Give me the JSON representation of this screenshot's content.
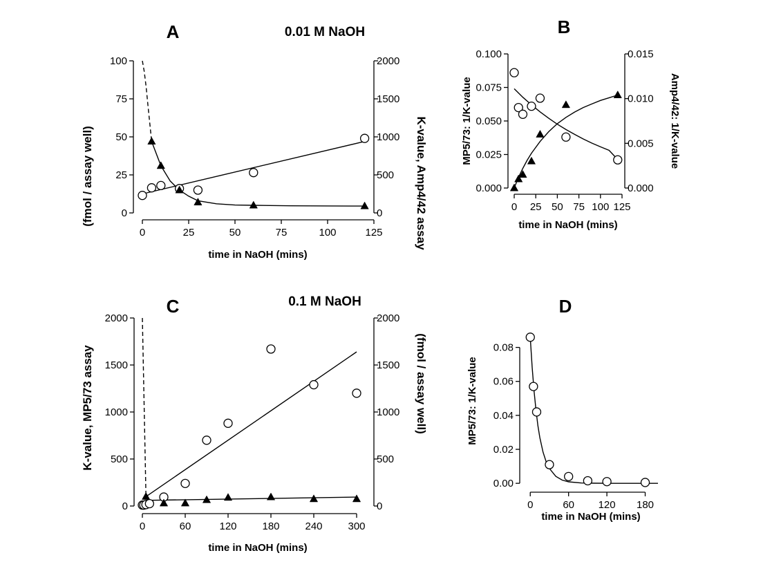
{
  "figure": {
    "shared_left_ylabel": "K-value, MP5/73 assay",
    "shared_left_ylabel_unit": "(fmol / assay well)",
    "shared_right_ylabel": "K-value, Amp4/42 assay",
    "shared_right_ylabel_unit": "(fmol / assay well)"
  },
  "chart_data": [
    {
      "id": "A",
      "type": "scatter",
      "panel_label": "A",
      "condition": "0.01 M NaOH",
      "xlabel": "time in NaOH (mins)",
      "xlim": [
        0,
        125
      ],
      "xticks": [
        0,
        25,
        50,
        75,
        100,
        125
      ],
      "ylim_left": [
        0,
        100
      ],
      "yticks_left": [
        0,
        25,
        50,
        75,
        100
      ],
      "ylim_right": [
        0,
        2000
      ],
      "yticks_right": [
        0,
        500,
        1000,
        1500,
        2000
      ],
      "series": [
        {
          "marker": "circle",
          "axis": "right",
          "x": [
            0,
            5,
            10,
            20,
            30,
            60,
            120
          ],
          "y": [
            230,
            330,
            360,
            320,
            300,
            530,
            980
          ]
        },
        {
          "marker": "triangle",
          "axis": "left",
          "x": [
            5,
            10,
            20,
            30,
            60,
            120
          ],
          "y": [
            47,
            31,
            15,
            7,
            5,
            4.5
          ]
        }
      ],
      "fits": [
        {
          "style": "solid",
          "axis": "right",
          "x": [
            0,
            120
          ],
          "y": [
            250,
            940
          ]
        },
        {
          "style": "solid",
          "axis": "left",
          "x": [
            5,
            10,
            15,
            20,
            25,
            30,
            40,
            50,
            60,
            80,
            100,
            120
          ],
          "y": [
            47,
            31,
            21,
            15,
            11,
            8,
            6,
            5.2,
            5,
            4.7,
            4.6,
            4.5
          ]
        },
        {
          "style": "dashed",
          "axis": "left",
          "x": [
            0,
            1,
            2,
            3,
            4,
            5
          ],
          "y": [
            100,
            93,
            83,
            71,
            59,
            47
          ]
        }
      ]
    },
    {
      "id": "B",
      "type": "scatter",
      "panel_label": "B",
      "xlabel": "time in NaOH (mins)",
      "ylabel_left": "MP5/73:  1/K-value",
      "ylabel_right": "Amp4/42:  1/K-value",
      "xlim": [
        0,
        125
      ],
      "xticks": [
        0,
        25,
        50,
        75,
        100,
        125
      ],
      "ylim_left": [
        0,
        0.1
      ],
      "yticks_left": [
        "0.000",
        "0.025",
        "0.050",
        "0.075",
        "0.100"
      ],
      "ylim_right": [
        0,
        0.015
      ],
      "yticks_right": [
        "0.000",
        "0.005",
        "0.010",
        "0.015"
      ],
      "series": [
        {
          "marker": "circle",
          "axis": "left",
          "x": [
            0,
            5,
            10,
            20,
            30,
            60,
            120
          ],
          "y": [
            0.086,
            0.06,
            0.055,
            0.061,
            0.067,
            0.038,
            0.021
          ]
        },
        {
          "marker": "triangle",
          "axis": "right",
          "x": [
            0,
            5,
            10,
            20,
            30,
            60,
            120
          ],
          "y": [
            0,
            0.001,
            0.0015,
            0.003,
            0.006,
            0.0093,
            0.0104
          ]
        }
      ],
      "fits": [
        {
          "style": "solid",
          "axis": "left",
          "x": [
            0,
            10,
            20,
            30,
            40,
            50,
            60,
            70,
            80,
            90,
            100,
            110,
            120
          ],
          "y": [
            0.074,
            0.0677,
            0.062,
            0.0568,
            0.052,
            0.0476,
            0.0436,
            0.04,
            0.0366,
            0.0335,
            0.0307,
            0.0281,
            0.0212
          ]
        },
        {
          "style": "solid",
          "axis": "right",
          "x": [
            0,
            5,
            10,
            15,
            20,
            30,
            40,
            50,
            60,
            70,
            80,
            90,
            100,
            110,
            120
          ],
          "y": [
            0,
            0.0012,
            0.0022,
            0.0031,
            0.0039,
            0.0052,
            0.0063,
            0.0072,
            0.0079,
            0.0085,
            0.009,
            0.0094,
            0.0098,
            0.0101,
            0.0104
          ]
        }
      ]
    },
    {
      "id": "C",
      "type": "scatter",
      "panel_label": "C",
      "condition": "0.1 M NaOH",
      "xlabel": "time in NaOH (mins)",
      "xlim": [
        0,
        300
      ],
      "xticks": [
        0,
        60,
        120,
        180,
        240,
        300
      ],
      "ylim_left": [
        0,
        2000
      ],
      "yticks_left": [
        0,
        500,
        1000,
        1500,
        2000
      ],
      "ylim_right": [
        0,
        2000
      ],
      "yticks_right": [
        0,
        500,
        1000,
        1500,
        2000
      ],
      "series": [
        {
          "marker": "circle",
          "axis": "left",
          "x": [
            0,
            2,
            5,
            10,
            30,
            60,
            90,
            120,
            180,
            240,
            300
          ],
          "y": [
            10,
            10,
            15,
            25,
            95,
            240,
            700,
            880,
            1670,
            1290,
            1200
          ]
        },
        {
          "marker": "triangle",
          "axis": "right",
          "x": [
            5,
            30,
            60,
            90,
            120,
            180,
            240,
            300
          ],
          "y": [
            100,
            30,
            30,
            65,
            90,
            95,
            75,
            75
          ]
        }
      ],
      "fits": [
        {
          "style": "solid",
          "axis": "left",
          "x": [
            5,
            300
          ],
          "y": [
            100,
            1640
          ]
        },
        {
          "style": "solid",
          "axis": "right",
          "x": [
            5,
            300
          ],
          "y": [
            60,
            95
          ]
        },
        {
          "style": "dashed",
          "axis": "left",
          "x": [
            0,
            5
          ],
          "y": [
            2000,
            100
          ]
        }
      ]
    },
    {
      "id": "D",
      "type": "scatter",
      "panel_label": "D",
      "xlabel": "time in NaOH (mins)",
      "ylabel_left": "MP5/73:  1/K-value",
      "xlim": [
        -10,
        200
      ],
      "xticks": [
        0,
        60,
        120,
        180
      ],
      "ylim_left": [
        -0.004,
        0.09
      ],
      "yticks_left": [
        "0.00",
        "0.02",
        "0.04",
        "0.06",
        "0.08"
      ],
      "series": [
        {
          "marker": "circle",
          "axis": "left",
          "x": [
            0,
            5,
            10,
            30,
            60,
            90,
            120,
            180
          ],
          "y": [
            0.086,
            0.057,
            0.042,
            0.011,
            0.004,
            0.0015,
            0.001,
            0.0005
          ]
        }
      ],
      "fits": [
        {
          "style": "solid",
          "axis": "left",
          "x": [
            0,
            3,
            6,
            9,
            12,
            15,
            20,
            25,
            30,
            40,
            50,
            60,
            80,
            100,
            130,
            160,
            200
          ],
          "y": [
            0.086,
            0.0682,
            0.054,
            0.0428,
            0.0339,
            0.0269,
            0.0184,
            0.0126,
            0.0087,
            0.0041,
            0.0019,
            0.0009,
            0.0002,
            5e-05,
            0,
            0,
            0
          ]
        }
      ]
    }
  ]
}
